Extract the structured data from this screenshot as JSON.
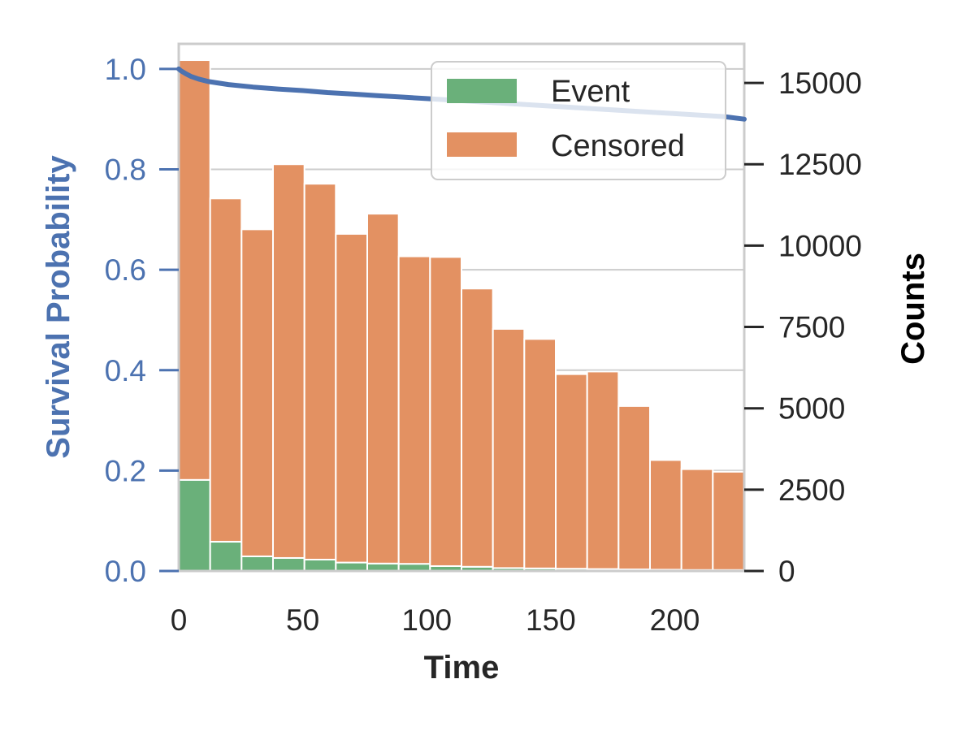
{
  "chart_data": {
    "type": "bar",
    "subtype": "stacked histogram with survival curve overlay",
    "title": "",
    "xlabel": "Time",
    "ylabel_left": "Survival Probability",
    "ylabel_right": "Counts",
    "xlim": [
      0,
      228
    ],
    "ylim_left": [
      0,
      1.05
    ],
    "ylim_right": [
      0,
      16200
    ],
    "xticks": [
      0,
      50,
      100,
      150,
      200
    ],
    "yticks_left": [
      0.0,
      0.2,
      0.4,
      0.6,
      0.8,
      1.0
    ],
    "yticks_right": [
      0,
      2500,
      5000,
      7500,
      10000,
      12500,
      15000
    ],
    "grid": true,
    "legend_position": "top-right",
    "bin_edges": [
      0,
      12.67,
      25.33,
      38,
      50.67,
      63.33,
      76,
      88.67,
      101.33,
      114,
      126.67,
      139.33,
      152,
      164.67,
      177.33,
      190,
      202.67,
      215.33,
      228
    ],
    "series": [
      {
        "name": "Event",
        "color": "#6ab07a",
        "values": [
          2800,
          900,
          450,
          400,
          350,
          260,
          230,
          220,
          150,
          130,
          90,
          80,
          70,
          60,
          50,
          40,
          30,
          30
        ]
      },
      {
        "name": "Censored",
        "color": "#e39162",
        "values": [
          12900,
          10550,
          10050,
          12100,
          11550,
          10100,
          10750,
          9450,
          9500,
          8550,
          7350,
          7050,
          5980,
          6070,
          5020,
          3370,
          3100,
          3020
        ]
      }
    ],
    "line": {
      "name": "Survival Probability",
      "color": "#4c72b0",
      "x": [
        0,
        1,
        2,
        3,
        5,
        8,
        12,
        20,
        30,
        40,
        50,
        60,
        70,
        80,
        90,
        100,
        110,
        120,
        130,
        140,
        150,
        160,
        170,
        180,
        190,
        200,
        210,
        220,
        228
      ],
      "y": [
        1.0,
        0.996,
        0.993,
        0.99,
        0.985,
        0.98,
        0.975,
        0.969,
        0.964,
        0.96,
        0.957,
        0.953,
        0.95,
        0.947,
        0.944,
        0.941,
        0.938,
        0.935,
        0.932,
        0.929,
        0.926,
        0.923,
        0.92,
        0.917,
        0.914,
        0.911,
        0.908,
        0.905,
        0.9
      ]
    }
  }
}
